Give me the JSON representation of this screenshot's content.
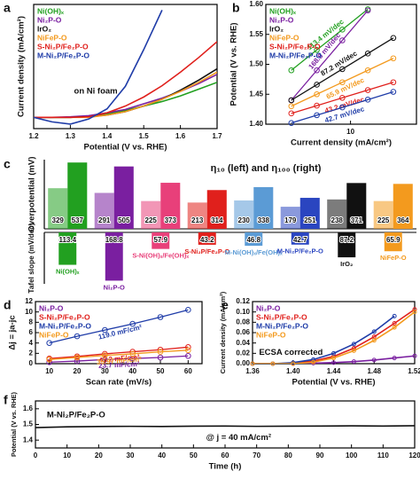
{
  "chart_data": [
    {
      "panel": "a",
      "type": "line",
      "xlabel": "Potential (V vs. RHE)",
      "ylabel": "Current density (mA/cm²)",
      "annotations": [
        "on Ni foam"
      ],
      "x": [
        1.2,
        1.25,
        1.3,
        1.35,
        1.4,
        1.45,
        1.5,
        1.55,
        1.6,
        1.65,
        1.7
      ],
      "xlim": [
        1.2,
        1.7
      ],
      "xticks": [
        1.2,
        1.3,
        1.4,
        1.5,
        1.6,
        1.7
      ],
      "ylim": [
        -20,
        200
      ],
      "series": [
        {
          "name": "Ni(OH)ₓ",
          "color": "#22a020",
          "values": [
            0,
            0,
            0,
            2,
            6,
            12,
            20,
            28,
            38,
            50,
            62
          ]
        },
        {
          "name": "Ni₂P-O",
          "color": "#7a1fa0",
          "values": [
            0,
            0,
            1,
            3,
            8,
            14,
            24,
            34,
            46,
            60,
            76
          ]
        },
        {
          "name": "IrO₂",
          "color": "#111111",
          "values": [
            0,
            0,
            0,
            1,
            4,
            10,
            20,
            32,
            48,
            66,
            86
          ]
        },
        {
          "name": "NiFeP-O",
          "color": "#f39a1e",
          "values": [
            0,
            0,
            0,
            0,
            4,
            10,
            20,
            32,
            46,
            62,
            80
          ]
        },
        {
          "name": "S-Ni₂P/Fe₂P-O",
          "color": "#e0201c",
          "values": [
            0,
            0,
            0,
            1,
            8,
            20,
            36,
            56,
            80,
            106,
            134
          ]
        },
        {
          "name": "M-Ni₂P/Fe₂P-O",
          "color": "#1f3ca8",
          "values": [
            0,
            -8,
            -12,
            -3,
            15,
            55,
            120,
            190,
            null,
            null,
            null
          ]
        }
      ]
    },
    {
      "panel": "b",
      "type": "scatter",
      "xscale": "log",
      "xlabel": "Current density (mA/cm²)",
      "ylabel": "Potential (V vs. RHE)",
      "x": [
        2,
        4,
        8,
        16,
        32
      ],
      "xlim": [
        1,
        60
      ],
      "xticks": [
        10
      ],
      "ylim": [
        1.4,
        1.6
      ],
      "yticks": [
        {
          "value": 1.4,
          "label": "1.40"
        },
        1.45,
        {
          "value": 1.5,
          "label": "1.50"
        },
        1.55,
        {
          "value": 1.6,
          "label": "1.60"
        }
      ],
      "series": [
        {
          "name": "Ni(OH)ₓ",
          "color": "#22a020",
          "label": "113.4 mV/dec",
          "values": [
            1.49,
            1.524,
            1.558,
            1.592,
            null
          ]
        },
        {
          "name": "Ni₂P-O",
          "color": "#7a1fa0",
          "label": "168.8 mV/dec",
          "values": [
            1.44,
            1.49,
            1.54,
            1.59,
            null
          ]
        },
        {
          "name": "IrO₂",
          "color": "#111111",
          "label": "87.2 mV/dec",
          "values": [
            1.44,
            1.466,
            1.492,
            1.518,
            1.544
          ]
        },
        {
          "name": "NiFeP-O",
          "color": "#f39a1e",
          "label": "65.9 mV/dec",
          "values": [
            1.43,
            1.45,
            1.47,
            1.49,
            1.51
          ]
        },
        {
          "name": "S-Ni₂P/Fe₂P-O",
          "color": "#e0201c",
          "label": "43.2 mV/dec",
          "values": [
            1.418,
            1.431,
            1.444,
            1.457,
            1.47
          ]
        },
        {
          "name": "M-Ni₂P/Fe₂P-O",
          "color": "#1f3ca8",
          "label": "42.7 mV/dec",
          "values": [
            1.402,
            1.415,
            1.428,
            1.441,
            1.454
          ]
        }
      ]
    },
    {
      "panel": "c",
      "type": "bar",
      "title": "η₁₀ (left) and η₁₀₀ (right)",
      "ylabel": "Overpotential (mV)",
      "ylim": [
        0,
        560
      ],
      "colors": [
        "#22a020",
        "#7a1fa0",
        "#e8407a",
        "#e0201c",
        "#5b9bd5",
        "#2a45c0",
        "#111111",
        "#f39a1e"
      ],
      "series": [
        {
          "values": [
            329,
            291,
            225,
            213,
            230,
            179,
            238,
            225
          ]
        },
        {
          "values": [
            537,
            505,
            373,
            314,
            338,
            251,
            371,
            364
          ]
        }
      ]
    },
    {
      "type": "bar",
      "ylabel": "Tafel slope (mV/dec)",
      "y_inverted": true,
      "ylim": [
        0,
        180
      ],
      "colors": [
        "#22a020",
        "#7a1fa0",
        "#e8407a",
        "#e0201c",
        "#5b9bd5",
        "#2a45c0",
        "#111111",
        "#f39a1e"
      ],
      "categories": [
        "Ni(OH)ₓ",
        "Ni₂P-O",
        "S-Ni(OH)ₓ/Fe(OH)ₓ",
        "S-Ni₂P/Fe₂P-O",
        "M-Ni(OH)ₓ/Fe(OH)ₓ",
        "M-Ni₂P/Fe₂P-O",
        "IrO₂",
        "NiFeP-O"
      ],
      "values": [
        113.4,
        168.8,
        57.9,
        43.2,
        46.8,
        42.7,
        87.2,
        65.9
      ]
    },
    {
      "panel": "d",
      "type": "scatter",
      "xlabel": "Scan rate (mV/s)",
      "ylabel": "Δj = ja-jc",
      "x": [
        10,
        20,
        30,
        40,
        50,
        60
      ],
      "xlim": [
        5,
        65
      ],
      "xticks": [
        10,
        20,
        30,
        40,
        50,
        60
      ],
      "ylim": [
        0,
        12
      ],
      "yticks": [
        0,
        2,
        4,
        6,
        8,
        10,
        12
      ],
      "series": [
        {
          "name": "Ni₂P-O",
          "color": "#7a1fa0",
          "label": "23.7 mF/cm²",
          "values": [
            0.3,
            0.5,
            0.8,
            1.0,
            1.2,
            1.5
          ]
        },
        {
          "name": "S-Ni₂P/Fe₂P-O",
          "color": "#e0201c",
          "label": "43.2 mF/cm²",
          "values": [
            1.0,
            1.4,
            1.9,
            2.3,
            2.7,
            3.2
          ]
        },
        {
          "name": "M-Ni₂P/Fe₂P-O",
          "color": "#1f3ca8",
          "label": "119.0 mF/cm²",
          "values": [
            4.0,
            5.3,
            6.5,
            7.7,
            9.0,
            10.4
          ]
        },
        {
          "name": "NiFeP-O",
          "color": "#f39a1e",
          "label": "35.97 mF/cm²",
          "values": [
            0.8,
            1.2,
            1.6,
            1.9,
            2.3,
            2.6
          ]
        }
      ]
    },
    {
      "panel": "e",
      "type": "line",
      "markers": true,
      "xlabel": "Potential (V vs. RHE)",
      "ylabel": "Current density (mA/cm²)",
      "annotations": [
        "ECSA corrected"
      ],
      "x": [
        1.36,
        1.38,
        1.4,
        1.42,
        1.44,
        1.46,
        1.48,
        1.5,
        1.52
      ],
      "xlim": [
        1.36,
        1.52
      ],
      "xticks": [
        1.36,
        {
          "value": 1.4,
          "label": "1.40"
        },
        1.44,
        1.48,
        1.52
      ],
      "ylim": [
        0,
        0.12
      ],
      "yticks": [
        {
          "value": 0,
          "label": "0.00"
        },
        0.02,
        0.04,
        0.06,
        0.08,
        {
          "value": 0.1,
          "label": "0.10"
        },
        0.12
      ],
      "series": [
        {
          "name": "Ni₂P-O",
          "color": "#7a1fa0",
          "values": [
            0,
            0,
            0,
            0.001,
            0.002,
            0.004,
            0.007,
            0.011,
            0.015
          ]
        },
        {
          "name": "S-Ni₂P/Fe₂P-O",
          "color": "#e0201c",
          "values": [
            0,
            0,
            0.001,
            0.005,
            0.014,
            0.03,
            0.052,
            0.078,
            0.105
          ]
        },
        {
          "name": "M-Ni₂P/Fe₂P-O",
          "color": "#1f3ca8",
          "values": [
            0,
            0,
            0.002,
            0.008,
            0.02,
            0.038,
            0.062,
            0.092,
            null
          ]
        },
        {
          "name": "NiFeP-O",
          "color": "#f39a1e",
          "values": [
            0,
            0,
            0,
            0.003,
            0.011,
            0.025,
            0.045,
            0.07,
            0.1
          ]
        }
      ]
    },
    {
      "panel": "f",
      "type": "line",
      "xlabel": "Time (h)",
      "ylabel": "Potential (V vs. RHE)",
      "annotations": [
        "M-Ni₂P/Fe₂P-O",
        "@ j = 40 mA/cm²"
      ],
      "x": [
        0,
        10,
        20,
        30,
        40,
        50,
        60,
        70,
        80,
        90,
        100,
        110,
        120
      ],
      "xlim": [
        0,
        120
      ],
      "xticks": [
        0,
        10,
        20,
        30,
        40,
        50,
        60,
        70,
        80,
        90,
        100,
        110,
        120
      ],
      "ylim": [
        1.35,
        1.65
      ],
      "yticks": [
        1.4,
        1.5,
        1.6
      ],
      "series": [
        {
          "color": "#111111",
          "values": [
            1.48,
            1.485,
            1.487,
            1.488,
            1.487,
            1.489,
            1.49,
            1.488,
            1.489,
            1.49,
            1.491,
            1.49,
            1.492
          ]
        }
      ]
    }
  ]
}
